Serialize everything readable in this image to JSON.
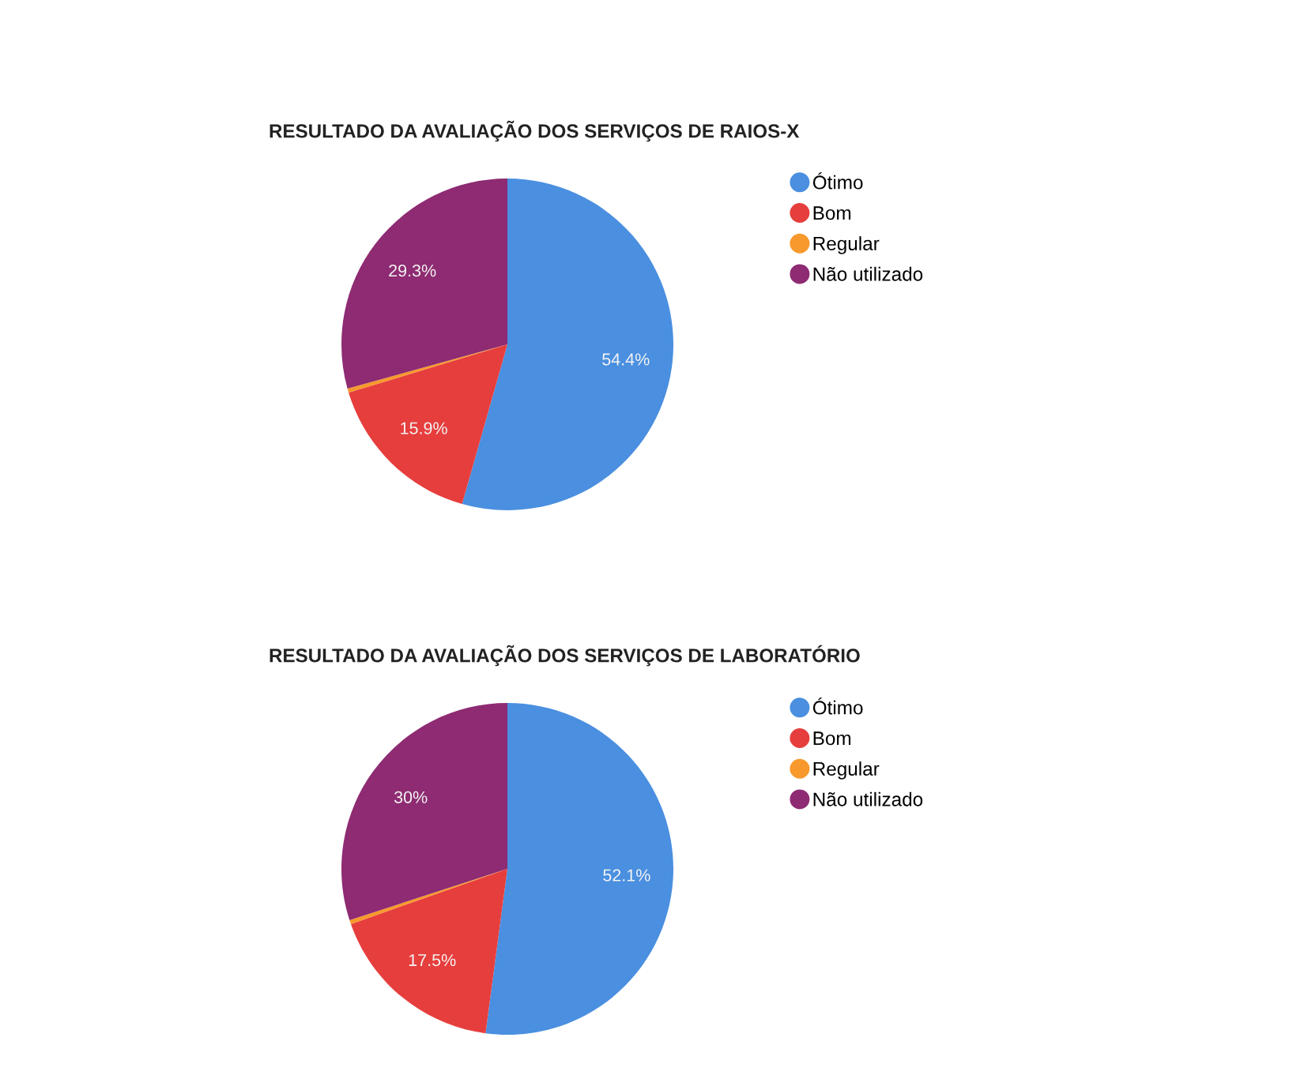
{
  "chart_data": [
    {
      "type": "pie",
      "title": "RESULTADO DA AVALIAÇÃO DOS SERVIÇOS DE RAIOS-X",
      "categories": [
        "Ótimo",
        "Bom",
        "Regular",
        "Não utilizado"
      ],
      "values": [
        54.4,
        15.9,
        0.4,
        29.3
      ],
      "colors": [
        "#4a8fe0",
        "#e63e3d",
        "#f7992c",
        "#8e2b72"
      ],
      "value_labels": [
        "54.4%",
        "15.9%",
        null,
        "29.3%"
      ],
      "legend": "right"
    },
    {
      "type": "pie",
      "title": "RESULTADO DA AVALIAÇÃO DOS SERVIÇOS DE LABORATÓRIO",
      "categories": [
        "Ótimo",
        "Bom",
        "Regular",
        "Não utilizado"
      ],
      "values": [
        52.1,
        17.5,
        0.4,
        30
      ],
      "colors": [
        "#4a8fe0",
        "#e63e3d",
        "#f7992c",
        "#8e2b72"
      ],
      "value_labels": [
        "52.1%",
        "17.5%",
        null,
        "30%"
      ],
      "legend": "right"
    }
  ]
}
